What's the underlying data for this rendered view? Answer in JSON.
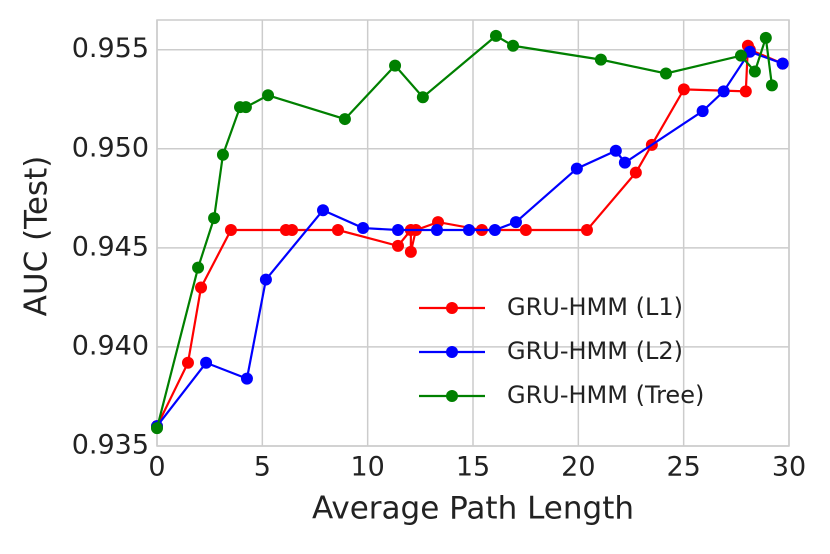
{
  "chart_data": {
    "type": "line",
    "x_label": "Average Path Length",
    "y_label": "AUC (Test)",
    "xlim": [
      0,
      30
    ],
    "xticks": [
      0,
      5,
      10,
      15,
      20,
      25,
      30
    ],
    "ylim": [
      0.935,
      0.9565
    ],
    "yticks": [
      0.935,
      {
        "value": 0.94,
        "label": "0.940"
      },
      0.945,
      {
        "value": 0.95,
        "label": "0.950"
      },
      0.955
    ],
    "grid": true,
    "legend": "lower right",
    "series": [
      {
        "name": "GRU-HMM (L1)",
        "color": "#ff0000",
        "x": [
          0,
          1.47,
          2.09,
          3.51,
          6.12,
          6.41,
          8.59,
          11.44,
          12.05,
          12.05,
          12.29,
          13.34,
          15.42,
          17.51,
          20.41,
          22.73,
          23.49,
          25.01,
          27.95,
          28.05,
          28.14,
          29.7
        ],
        "values": [
          0.936,
          0.9392,
          0.943,
          0.9459,
          0.9459,
          0.9459,
          0.9459,
          0.9451,
          0.9459,
          0.9448,
          0.9459,
          0.9463,
          0.9459,
          0.9459,
          0.9459,
          0.9488,
          0.9502,
          0.953,
          0.9529,
          0.9552,
          0.955,
          0.9543
        ]
      },
      {
        "name": "GRU-HMM (L2)",
        "color": "#0000ff",
        "x": [
          0,
          2.33,
          4.27,
          5.17,
          7.88,
          9.78,
          11.44,
          13.29,
          14.81,
          16.04,
          17.04,
          19.93,
          21.78,
          22.21,
          25.9,
          26.9,
          28.14,
          29.7
        ],
        "values": [
          0.936,
          0.9392,
          0.9384,
          0.9434,
          0.9469,
          0.946,
          0.9459,
          0.9459,
          0.9459,
          0.9459,
          0.9463,
          0.949,
          0.9499,
          0.9493,
          0.9519,
          0.9529,
          0.9549,
          0.9543
        ]
      },
      {
        "name": "GRU-HMM (Tree)",
        "color": "#008000",
        "x": [
          0,
          1.95,
          2.71,
          3.13,
          3.94,
          4.22,
          5.27,
          8.92,
          11.3,
          12.62,
          16.09,
          16.9,
          21.07,
          24.16,
          27.72,
          28.38,
          28.9,
          29.19
        ],
        "values": [
          0.9359,
          0.944,
          0.9465,
          0.9497,
          0.9521,
          0.9521,
          0.9527,
          0.9515,
          0.9542,
          0.9526,
          0.9557,
          0.9552,
          0.9545,
          0.9538,
          0.9547,
          0.9539,
          0.9556,
          0.9532
        ]
      }
    ]
  }
}
